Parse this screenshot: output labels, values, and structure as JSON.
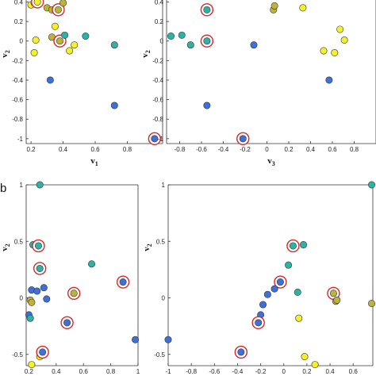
{
  "panel_b_label": "b",
  "colors": {
    "yellow": "#f4f02a",
    "olive": "#bdb23a",
    "teal": "#2db3a5",
    "blue": "#3f6fd8",
    "ring": "#d62828",
    "stroke": "#333333"
  },
  "chart_data": [
    {
      "id": "a-left",
      "type": "scatter",
      "xlabel": "v1",
      "xlabel_main": "v",
      "xlabel_sub": "1",
      "ylabel": "v2",
      "ylabel_main": "v",
      "ylabel_sub": "2",
      "xlim": [
        0.17,
        1.02
      ],
      "ylim": [
        -1.05,
        0.42
      ],
      "xticks": [
        0.2,
        0.4,
        0.6,
        0.8
      ],
      "xticklabels": [
        "0.2",
        "0.4",
        "0.6",
        "0.8"
      ],
      "yticks": [
        0.4,
        0.2,
        0,
        -0.2,
        -0.4,
        -0.6,
        -0.8,
        -1
      ],
      "yticklabels": [
        "0.4",
        "0.2",
        "0",
        "-0.2",
        "-0.4",
        "-0.6",
        "-0.8",
        "-1"
      ],
      "points": [
        {
          "x": 0.2,
          "y": 0.37,
          "c": "yellow"
        },
        {
          "x": 0.22,
          "y": 0.39,
          "c": "yellow"
        },
        {
          "x": 0.24,
          "y": 0.4,
          "c": "yellow",
          "ring": true
        },
        {
          "x": 0.3,
          "y": 0.34,
          "c": "olive"
        },
        {
          "x": 0.33,
          "y": 0.32,
          "c": "olive"
        },
        {
          "x": 0.37,
          "y": 0.32,
          "c": "olive",
          "ring": true
        },
        {
          "x": 0.4,
          "y": 0.39,
          "c": "olive"
        },
        {
          "x": 0.35,
          "y": 0.15,
          "c": "yellow"
        },
        {
          "x": 0.23,
          "y": 0.01,
          "c": "yellow"
        },
        {
          "x": 0.22,
          "y": -0.12,
          "c": "yellow"
        },
        {
          "x": 0.33,
          "y": 0.04,
          "c": "olive"
        },
        {
          "x": 0.38,
          "y": 0.0,
          "c": "olive",
          "ring": true
        },
        {
          "x": 0.41,
          "y": 0.06,
          "c": "teal"
        },
        {
          "x": 0.47,
          "y": -0.04,
          "c": "yellow"
        },
        {
          "x": 0.44,
          "y": -0.1,
          "c": "yellow"
        },
        {
          "x": 0.54,
          "y": 0.05,
          "c": "teal"
        },
        {
          "x": 0.72,
          "y": -0.04,
          "c": "teal"
        },
        {
          "x": 0.32,
          "y": -0.4,
          "c": "blue"
        },
        {
          "x": 0.72,
          "y": -0.66,
          "c": "blue"
        },
        {
          "x": 0.97,
          "y": -1.0,
          "c": "blue",
          "ring": true
        }
      ]
    },
    {
      "id": "a-right",
      "type": "scatter",
      "xlabel": "v3",
      "xlabel_main": "v",
      "xlabel_sub": "3",
      "ylabel": "v2",
      "ylabel_main": "v",
      "ylabel_sub": "2",
      "xlim": [
        -0.92,
        1.0
      ],
      "ylim": [
        -1.05,
        0.42
      ],
      "xticks": [
        -0.8,
        -0.6,
        -0.4,
        -0.2,
        0,
        0.2,
        0.4,
        0.6,
        0.8
      ],
      "xticklabels": [
        "-0.8",
        "-0.6",
        "-0.4",
        "-0.2",
        "0",
        "0.2",
        "0.4",
        "0.6",
        "0.8"
      ],
      "yticks": [
        0.4,
        0.2,
        0,
        -0.2,
        -0.4,
        -0.6,
        -0.8,
        -1
      ],
      "yticklabels": [
        "0.4",
        "0.2",
        "0",
        "-0.2",
        "-0.4",
        "-0.6",
        "-0.8",
        "-1"
      ],
      "points": [
        {
          "x": -0.55,
          "y": 0.32,
          "c": "teal",
          "ring": true
        },
        {
          "x": -0.55,
          "y": 0.0,
          "c": "teal",
          "ring": true
        },
        {
          "x": -0.88,
          "y": 0.05,
          "c": "teal"
        },
        {
          "x": -0.78,
          "y": 0.06,
          "c": "teal"
        },
        {
          "x": -0.7,
          "y": -0.04,
          "c": "teal"
        },
        {
          "x": -0.12,
          "y": -0.04,
          "c": "blue"
        },
        {
          "x": 0.06,
          "y": 0.32,
          "c": "olive"
        },
        {
          "x": 0.07,
          "y": 0.36,
          "c": "olive"
        },
        {
          "x": 0.33,
          "y": 0.34,
          "c": "yellow"
        },
        {
          "x": 0.67,
          "y": 0.12,
          "c": "yellow"
        },
        {
          "x": 0.71,
          "y": 0.01,
          "c": "yellow"
        },
        {
          "x": 0.52,
          "y": -0.1,
          "c": "yellow"
        },
        {
          "x": 0.62,
          "y": -0.12,
          "c": "yellow"
        },
        {
          "x": 0.57,
          "y": -0.4,
          "c": "blue"
        },
        {
          "x": -0.55,
          "y": -0.66,
          "c": "blue"
        },
        {
          "x": -0.22,
          "y": -1.0,
          "c": "blue",
          "ring": true
        }
      ]
    },
    {
      "id": "b-left",
      "type": "scatter",
      "xlabel": "",
      "xlabel_main": "",
      "xlabel_sub": "",
      "ylabel": "v2",
      "ylabel_main": "v",
      "ylabel_sub": "2",
      "xlim": [
        0.18,
        1.0
      ],
      "ylim": [
        -0.6,
        1.0
      ],
      "xticks": [
        0.2,
        0.4,
        0.6,
        0.8,
        1
      ],
      "xticklabels": [
        "0.2",
        "0.4",
        "0.6",
        "0.8",
        "1"
      ],
      "yticks": [
        1,
        0.5,
        0,
        -0.5
      ],
      "yticklabels": [
        "1",
        "0.5",
        "0",
        "-0.5"
      ],
      "points": [
        {
          "x": 0.28,
          "y": 1.0,
          "c": "teal"
        },
        {
          "x": 0.23,
          "y": 0.47,
          "c": "teal"
        },
        {
          "x": 0.27,
          "y": 0.46,
          "c": "teal",
          "ring": true
        },
        {
          "x": 0.28,
          "y": 0.26,
          "c": "teal",
          "ring": true
        },
        {
          "x": 0.66,
          "y": 0.3,
          "c": "teal"
        },
        {
          "x": 0.89,
          "y": 0.14,
          "c": "blue",
          "ring": true
        },
        {
          "x": 0.53,
          "y": 0.04,
          "c": "olive",
          "ring": true
        },
        {
          "x": 0.22,
          "y": 0.07,
          "c": "blue"
        },
        {
          "x": 0.26,
          "y": 0.06,
          "c": "blue"
        },
        {
          "x": 0.31,
          "y": 0.09,
          "c": "blue"
        },
        {
          "x": 0.21,
          "y": -0.02,
          "c": "olive"
        },
        {
          "x": 0.22,
          "y": -0.04,
          "c": "olive"
        },
        {
          "x": 0.33,
          "y": -0.01,
          "c": "blue"
        },
        {
          "x": 0.2,
          "y": -0.15,
          "c": "blue"
        },
        {
          "x": 0.21,
          "y": -0.18,
          "c": "teal"
        },
        {
          "x": 0.48,
          "y": -0.22,
          "c": "blue",
          "ring": true
        },
        {
          "x": 0.28,
          "y": -0.52,
          "c": "yellow"
        },
        {
          "x": 0.3,
          "y": -0.48,
          "c": "blue",
          "ring": true
        },
        {
          "x": 0.98,
          "y": -0.37,
          "c": "blue"
        },
        {
          "x": 0.22,
          "y": -0.59,
          "c": "yellow"
        }
      ]
    },
    {
      "id": "b-right",
      "type": "scatter",
      "xlabel": "",
      "xlabel_main": "",
      "xlabel_sub": "",
      "ylabel": "v2",
      "ylabel_main": "v",
      "ylabel_sub": "2",
      "xlim": [
        -1.0,
        0.77
      ],
      "ylim": [
        -0.6,
        1.0
      ],
      "xticks": [
        -1,
        -0.8,
        -0.6,
        -0.4,
        -0.2,
        0,
        0.2,
        0.4,
        0.6
      ],
      "xticklabels": [
        "-1",
        "-0.8",
        "-0.6",
        "-0.4",
        "-0.2",
        "0",
        "0.2",
        "0.4",
        "0.6"
      ],
      "yticks": [
        1,
        0.5,
        0,
        -0.5
      ],
      "yticklabels": [
        "1",
        "0.5",
        "0",
        "-0.5"
      ],
      "points": [
        {
          "x": 0.76,
          "y": 1.0,
          "c": "teal"
        },
        {
          "x": 0.08,
          "y": 0.46,
          "c": "teal",
          "ring": true
        },
        {
          "x": 0.17,
          "y": 0.47,
          "c": "teal"
        },
        {
          "x": 0.04,
          "y": 0.29,
          "c": "teal"
        },
        {
          "x": -0.03,
          "y": 0.14,
          "c": "blue",
          "ring": true
        },
        {
          "x": -0.08,
          "y": 0.08,
          "c": "blue"
        },
        {
          "x": -0.14,
          "y": 0.03,
          "c": "blue"
        },
        {
          "x": -0.18,
          "y": -0.06,
          "c": "blue"
        },
        {
          "x": -0.2,
          "y": -0.15,
          "c": "blue"
        },
        {
          "x": -0.22,
          "y": -0.22,
          "c": "blue",
          "ring": true
        },
        {
          "x": 0.12,
          "y": 0.05,
          "c": "teal"
        },
        {
          "x": 0.43,
          "y": 0.04,
          "c": "olive",
          "ring": true
        },
        {
          "x": 0.45,
          "y": -0.03,
          "c": "olive"
        },
        {
          "x": 0.46,
          "y": -0.02,
          "c": "olive"
        },
        {
          "x": 0.76,
          "y": -0.05,
          "c": "olive"
        },
        {
          "x": 0.13,
          "y": -0.18,
          "c": "yellow"
        },
        {
          "x": -1.0,
          "y": -0.37,
          "c": "blue"
        },
        {
          "x": -0.37,
          "y": -0.48,
          "c": "blue",
          "ring": true
        },
        {
          "x": 0.18,
          "y": -0.52,
          "c": "yellow"
        },
        {
          "x": 0.27,
          "y": -0.59,
          "c": "yellow"
        }
      ]
    }
  ]
}
